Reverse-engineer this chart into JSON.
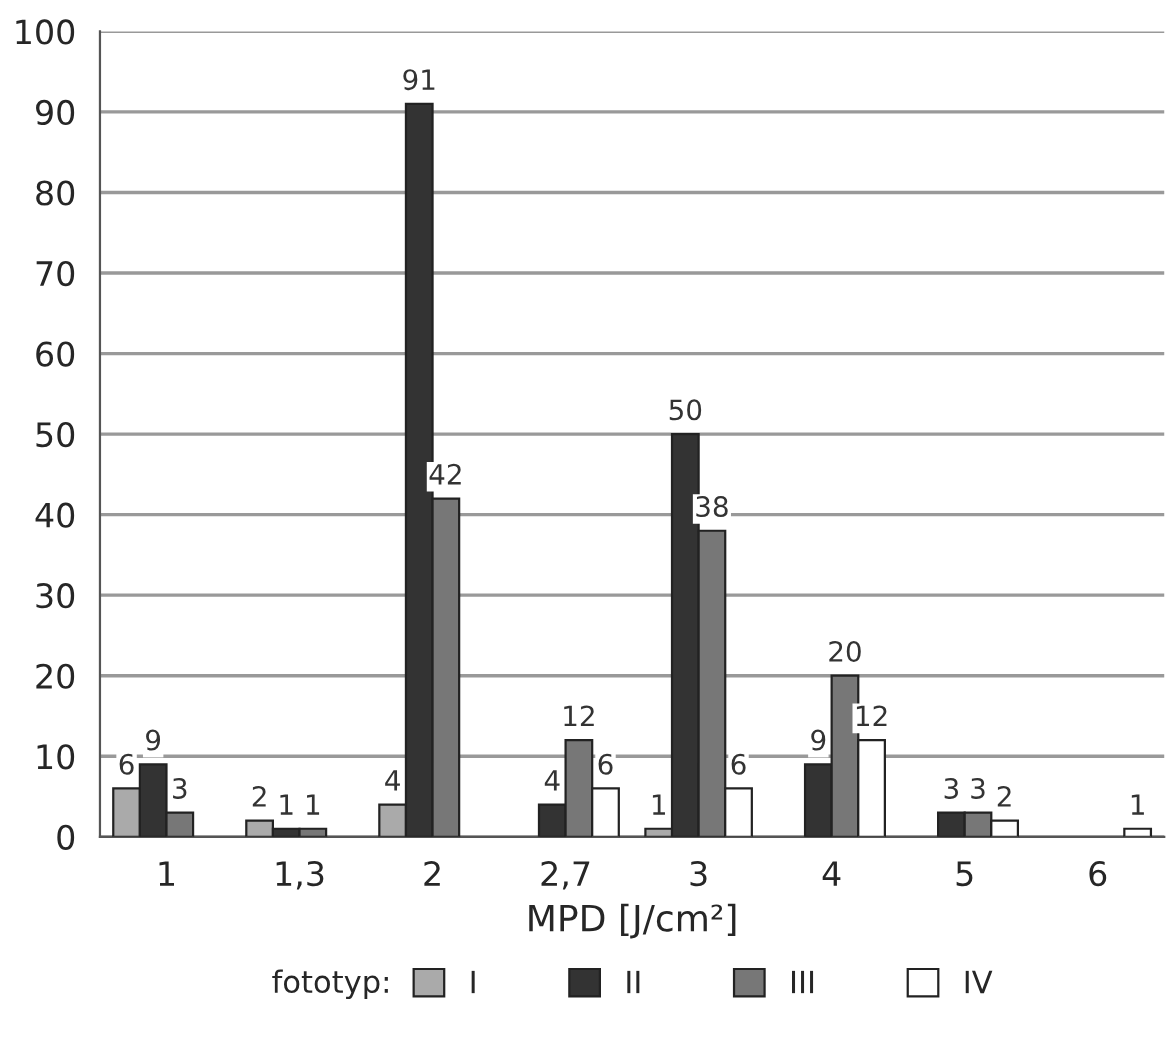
{
  "chart_data": {
    "type": "bar",
    "xlabel": "MPD [J/cm²]",
    "legend_title": "fototyp:",
    "categories": [
      "1",
      "1,3",
      "2",
      "2,7",
      "3",
      "4",
      "5",
      "6"
    ],
    "series": [
      {
        "name": "I",
        "color": "#aaaaaa",
        "values": [
          6,
          2,
          4,
          null,
          1,
          null,
          null,
          null
        ]
      },
      {
        "name": "II",
        "color": "#333333",
        "values": [
          9,
          1,
          91,
          4,
          50,
          9,
          3,
          null
        ]
      },
      {
        "name": "III",
        "color": "#777777",
        "values": [
          3,
          1,
          42,
          12,
          38,
          20,
          3,
          null
        ]
      },
      {
        "name": "IV",
        "color": "#ffffff",
        "values": [
          null,
          null,
          null,
          6,
          6,
          12,
          2,
          1
        ]
      }
    ],
    "ylim": [
      0,
      100
    ],
    "yticks": [
      0,
      10,
      20,
      30,
      40,
      50,
      60,
      70,
      80,
      90,
      100
    ],
    "grid": "y",
    "legend": "bottom",
    "data_labels": true
  }
}
